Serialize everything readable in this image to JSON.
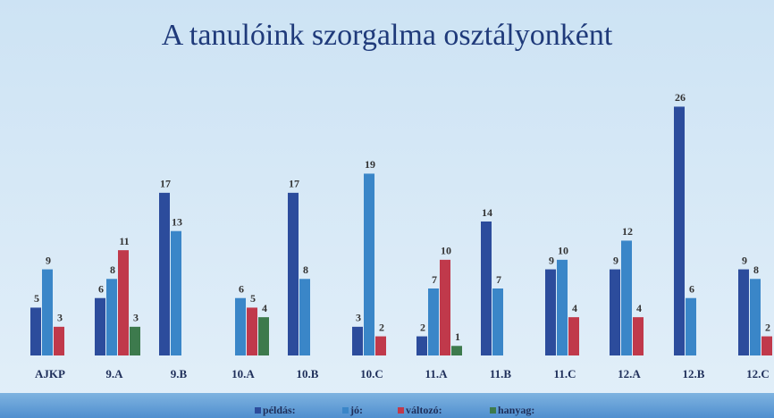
{
  "chart_data": {
    "type": "bar",
    "title": "A tanulóink szorgalma osztályonként",
    "categories": [
      "AJKP",
      "9.A",
      "9.B",
      "10.A",
      "10.B",
      "10.C",
      "11.A",
      "11.B",
      "11.C",
      "12.A",
      "12.B",
      "12.C"
    ],
    "series": [
      {
        "name": "példás:",
        "color": "#2c4c9c",
        "values": [
          5,
          6,
          17,
          null,
          17,
          3,
          2,
          14,
          9,
          9,
          26,
          9
        ]
      },
      {
        "name": "jó:",
        "color": "#3a86c8",
        "values": [
          9,
          8,
          13,
          6,
          8,
          19,
          7,
          7,
          10,
          12,
          6,
          8
        ]
      },
      {
        "name": "változó:",
        "color": "#c0394b",
        "values": [
          3,
          11,
          null,
          5,
          null,
          2,
          10,
          null,
          4,
          4,
          null,
          2
        ]
      },
      {
        "name": "hanyag:",
        "color": "#3d7a4d",
        "values": [
          null,
          3,
          null,
          4,
          null,
          null,
          1,
          null,
          null,
          null,
          null,
          null
        ]
      }
    ],
    "ylim": [
      0,
      28
    ],
    "legend": "bottom"
  }
}
